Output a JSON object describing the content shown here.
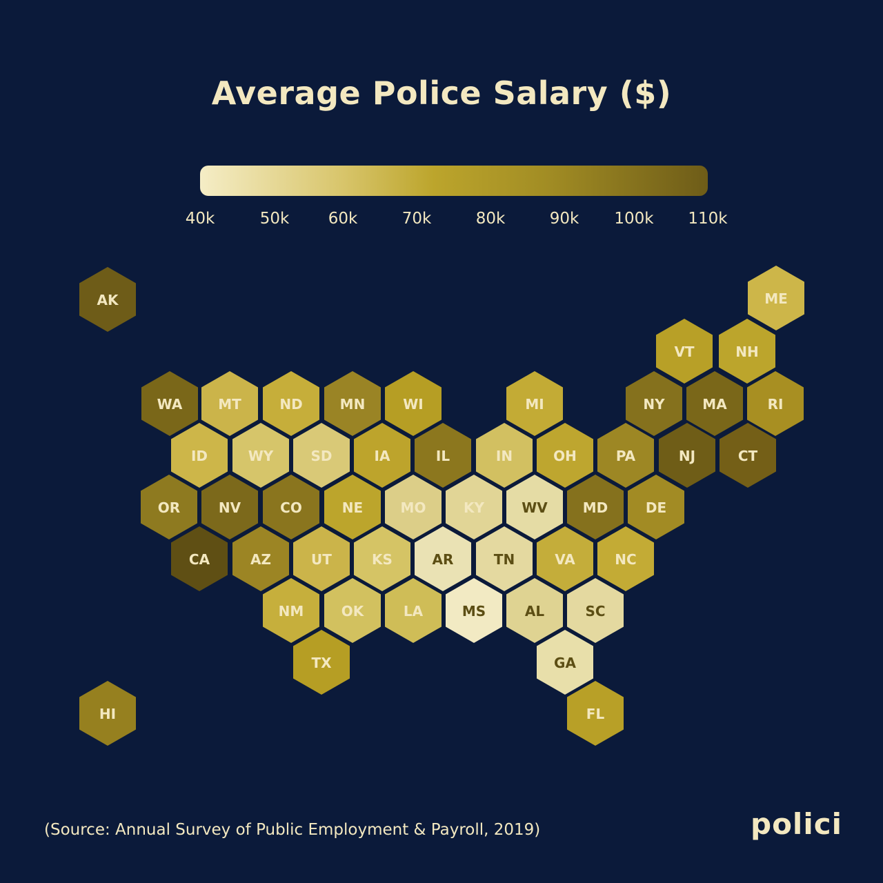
{
  "title": "Average Police Salary ($)",
  "legend": {
    "ticks": [
      "40k",
      "50k",
      "60k",
      "70k",
      "80k",
      "90k",
      "100k",
      "110k"
    ],
    "tick_values": [
      40000,
      50000,
      60000,
      70000,
      80000,
      90000,
      100000,
      110000
    ],
    "colors": [
      "#f5edc6",
      "#6e5c18"
    ]
  },
  "source": "(Source: Annual Survey of Public Employment & Payroll, 2019)",
  "brand": "polici",
  "colors": {
    "background": "#0b1a3a",
    "text_light": "#f3e8c0",
    "text_dark": "#5c4e14"
  },
  "chart_data": {
    "type": "heatmap",
    "map_style": "hex-tile-us",
    "title": "Average Police Salary ($)",
    "states": [
      {
        "code": "AK",
        "color": "#6e5c18",
        "label_dark": false
      },
      {
        "code": "ME",
        "color": "#cdb649",
        "label_dark": false
      },
      {
        "code": "VT",
        "color": "#b8a027",
        "label_dark": false
      },
      {
        "code": "NH",
        "color": "#bca52c",
        "label_dark": false
      },
      {
        "code": "WA",
        "color": "#7a6719",
        "label_dark": false
      },
      {
        "code": "MT",
        "color": "#cbb44a",
        "label_dark": false
      },
      {
        "code": "ND",
        "color": "#c6ae3a",
        "label_dark": false
      },
      {
        "code": "MN",
        "color": "#9a8425",
        "label_dark": false
      },
      {
        "code": "WI",
        "color": "#b69e24",
        "label_dark": false
      },
      {
        "code": "MI",
        "color": "#c3ab35",
        "label_dark": false
      },
      {
        "code": "NY",
        "color": "#85711d",
        "label_dark": false
      },
      {
        "code": "MA",
        "color": "#7a6719",
        "label_dark": false
      },
      {
        "code": "RI",
        "color": "#a88f22",
        "label_dark": false
      },
      {
        "code": "ID",
        "color": "#cdb649",
        "label_dark": false
      },
      {
        "code": "WY",
        "color": "#d6c56a",
        "label_dark": false
      },
      {
        "code": "SD",
        "color": "#d9c977",
        "label_dark": false
      },
      {
        "code": "IA",
        "color": "#bda42c",
        "label_dark": false
      },
      {
        "code": "IL",
        "color": "#8c771e",
        "label_dark": false
      },
      {
        "code": "IN",
        "color": "#d2c061",
        "label_dark": false
      },
      {
        "code": "OH",
        "color": "#bea62f",
        "label_dark": false
      },
      {
        "code": "PA",
        "color": "#9d8724",
        "label_dark": false
      },
      {
        "code": "NJ",
        "color": "#6f5d17",
        "label_dark": false
      },
      {
        "code": "CT",
        "color": "#745f17",
        "label_dark": false
      },
      {
        "code": "OR",
        "color": "#8e7a20",
        "label_dark": false
      },
      {
        "code": "NV",
        "color": "#7c691b",
        "label_dark": false
      },
      {
        "code": "CO",
        "color": "#8a751e",
        "label_dark": false
      },
      {
        "code": "NE",
        "color": "#bca52c",
        "label_dark": false
      },
      {
        "code": "MO",
        "color": "#dcce88",
        "label_dark": false
      },
      {
        "code": "KY",
        "color": "#e1d596",
        "label_dark": false
      },
      {
        "code": "WV",
        "color": "#e5dca5",
        "label_dark": true
      },
      {
        "code": "MD",
        "color": "#85711d",
        "label_dark": false
      },
      {
        "code": "DE",
        "color": "#a28b24",
        "label_dark": false
      },
      {
        "code": "CA",
        "color": "#5f4f14",
        "label_dark": false
      },
      {
        "code": "AZ",
        "color": "#9c8524",
        "label_dark": false
      },
      {
        "code": "UT",
        "color": "#cbb44a",
        "label_dark": false
      },
      {
        "code": "KS",
        "color": "#d5c465",
        "label_dark": false
      },
      {
        "code": "AR",
        "color": "#eae2b4",
        "label_dark": true
      },
      {
        "code": "TN",
        "color": "#e4d9a0",
        "label_dark": true
      },
      {
        "code": "VA",
        "color": "#c4ad3a",
        "label_dark": false
      },
      {
        "code": "NC",
        "color": "#c3ab35",
        "label_dark": false
      },
      {
        "code": "NM",
        "color": "#c6af3c",
        "label_dark": false
      },
      {
        "code": "OK",
        "color": "#d2c15f",
        "label_dark": false
      },
      {
        "code": "LA",
        "color": "#cfbd57",
        "label_dark": false
      },
      {
        "code": "MS",
        "color": "#f2eac3",
        "label_dark": true
      },
      {
        "code": "AL",
        "color": "#dfd392",
        "label_dark": true
      },
      {
        "code": "SC",
        "color": "#e4d9a0",
        "label_dark": true
      },
      {
        "code": "TX",
        "color": "#b69e24",
        "label_dark": false
      },
      {
        "code": "GA",
        "color": "#e8dfaa",
        "label_dark": true
      },
      {
        "code": "HI",
        "color": "#96801f",
        "label_dark": false
      },
      {
        "code": "FL",
        "color": "#b8a027",
        "label_dark": false
      }
    ]
  }
}
